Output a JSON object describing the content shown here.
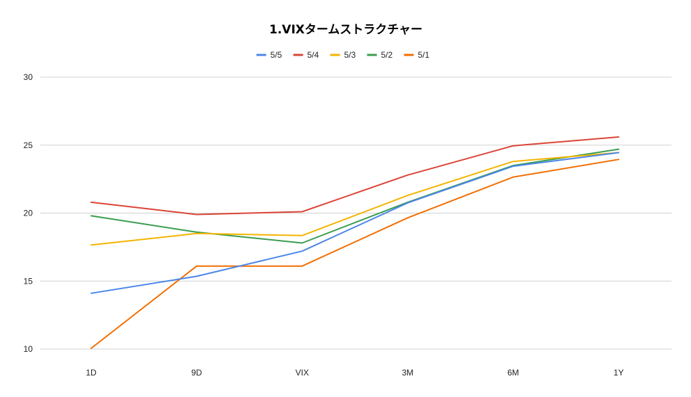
{
  "chart_data": {
    "type": "line",
    "title": "1.VIXタームストラクチャー",
    "xlabel": "",
    "ylabel": "",
    "categories": [
      "1D",
      "9D",
      "VIX",
      "3M",
      "6M",
      "1Y"
    ],
    "ylim": [
      10,
      30
    ],
    "yticks": [
      10,
      15,
      20,
      25,
      30
    ],
    "grid": true,
    "legend_position": "top-center",
    "series": [
      {
        "name": "5/5",
        "color": "#4a86e8",
        "values": [
          14.1,
          15.35,
          17.2,
          20.75,
          23.45,
          24.45
        ]
      },
      {
        "name": "5/4",
        "color": "#db4437",
        "values": [
          20.8,
          19.9,
          20.1,
          22.8,
          24.95,
          25.6
        ]
      },
      {
        "name": "5/3",
        "color": "#f4b400",
        "values": [
          17.65,
          18.5,
          18.35,
          21.3,
          23.8,
          24.45
        ]
      },
      {
        "name": "5/2",
        "color": "#3a9d4f",
        "values": [
          19.8,
          18.6,
          17.8,
          20.8,
          23.5,
          24.7
        ]
      },
      {
        "name": "5/1",
        "color": "#f36d00",
        "values": [
          10.05,
          16.1,
          16.1,
          19.65,
          22.65,
          23.95
        ]
      }
    ]
  }
}
